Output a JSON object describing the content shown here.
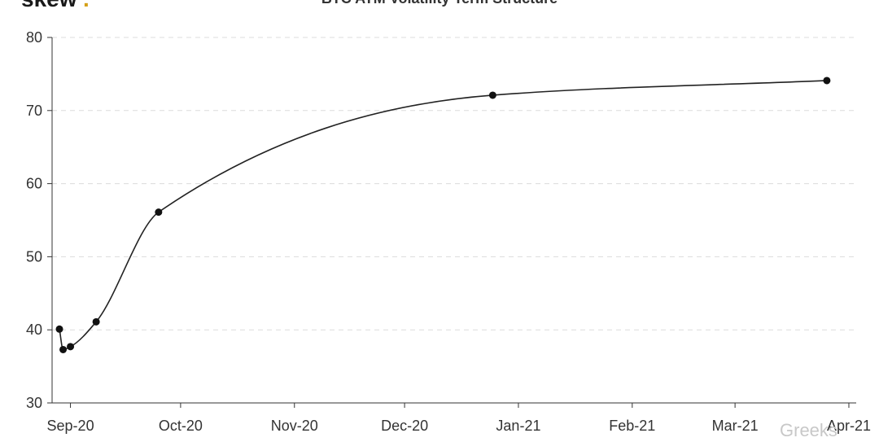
{
  "brand": {
    "name": "skew",
    "dot": ".",
    "dot_color": "#d4a017"
  },
  "watermark": "Greeks",
  "chart_data": {
    "type": "line",
    "title": "BTC ATM Volatility Term Structure",
    "xlabel": "",
    "ylabel": "",
    "ylim": [
      30,
      80
    ],
    "yticks": [
      30,
      40,
      50,
      60,
      70,
      80
    ],
    "xlim": [
      "2020-08-27",
      "2021-04-03"
    ],
    "xticks": [
      {
        "date": "2020-09-01",
        "label": "Sep-20"
      },
      {
        "date": "2020-10-01",
        "label": "Oct-20"
      },
      {
        "date": "2020-11-01",
        "label": "Nov-20"
      },
      {
        "date": "2020-12-01",
        "label": "Dec-20"
      },
      {
        "date": "2021-01-01",
        "label": "Jan-21"
      },
      {
        "date": "2021-02-01",
        "label": "Feb-21"
      },
      {
        "date": "2021-03-01",
        "label": "Mar-21"
      },
      {
        "date": "2021-04-01",
        "label": "Apr-21"
      }
    ],
    "grid": true,
    "series": [
      {
        "color": "#222222",
        "points": [
          {
            "x": "2020-08-29",
            "y": 40.1
          },
          {
            "x": "2020-08-30",
            "y": 37.3
          },
          {
            "x": "2020-09-01",
            "y": 37.7
          },
          {
            "x": "2020-09-08",
            "y": 41.1
          },
          {
            "x": "2020-09-25",
            "y": 56.1
          },
          {
            "x": "2020-12-25",
            "y": 72.1
          },
          {
            "x": "2021-03-26",
            "y": 74.1
          }
        ]
      }
    ]
  }
}
